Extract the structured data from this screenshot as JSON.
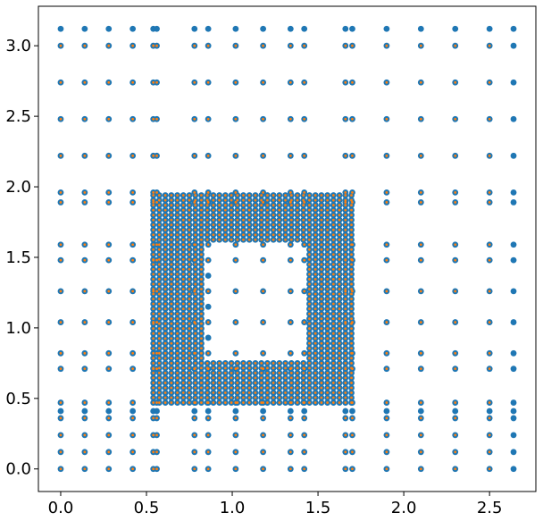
{
  "chart_data": {
    "type": "scatter",
    "title": "",
    "xlabel": "",
    "ylabel": "",
    "xlim": [
      -0.13,
      2.77
    ],
    "ylim": [
      -0.16,
      3.28
    ],
    "grid": false,
    "x_ticks": [
      0.0,
      0.5,
      1.0,
      1.5,
      2.0,
      2.5
    ],
    "x_tick_labels": [
      "0.0",
      "0.5",
      "1.0",
      "1.5",
      "2.0",
      "2.5"
    ],
    "y_ticks": [
      0.0,
      0.5,
      1.0,
      1.5,
      2.0,
      2.5,
      3.0
    ],
    "y_tick_labels": [
      "0.0",
      "0.5",
      "1.0",
      "1.5",
      "2.0",
      "2.5",
      "3.0"
    ],
    "series": [
      {
        "color": "#1f77b4",
        "marker": "filled-circle",
        "grid_x": [
          0.0,
          0.14,
          0.28,
          0.42,
          0.54,
          0.56,
          0.78,
          0.86,
          1.02,
          1.18,
          1.34,
          1.42,
          1.66,
          1.7,
          1.9,
          2.1,
          2.3,
          2.5,
          2.64
        ],
        "grid_y": [
          0.0,
          0.12,
          0.24,
          0.36,
          0.41,
          0.47,
          0.71,
          0.82,
          1.04,
          1.26,
          1.48,
          1.59,
          1.89,
          1.96,
          2.22,
          2.48,
          2.74,
          3.0,
          3.12
        ],
        "dense_block": {
          "x_from": 0.54,
          "x_to": 1.7,
          "x_step": 0.035,
          "y_from": 0.47,
          "y_to": 1.96,
          "y_step": 0.035
        },
        "hole": {
          "x_from": 0.84,
          "x_to": 1.44,
          "y_from": 0.78,
          "y_to": 1.6
        },
        "hole_points": [
          [
            1.02,
            1.26
          ],
          [
            1.18,
            1.26
          ],
          [
            1.02,
            1.04
          ],
          [
            0.86,
            1.37
          ],
          [
            0.86,
            1.15
          ],
          [
            0.86,
            0.93
          ]
        ]
      },
      {
        "color": "#ff7f0e",
        "marker": "small-dot",
        "grid_x": [
          0.0,
          0.14,
          0.28,
          0.42,
          0.54,
          0.56,
          0.78,
          0.86,
          1.02,
          1.18,
          1.34,
          1.42,
          1.66,
          1.7,
          1.9,
          2.1,
          2.3,
          2.5
        ],
        "grid_y": [
          0.0,
          0.12,
          0.24,
          0.36,
          0.47,
          0.71,
          0.82,
          1.04,
          1.26,
          1.48,
          1.59,
          1.89,
          1.96,
          2.22,
          2.48,
          2.74,
          3.0
        ],
        "dense_block": {
          "x_from": 0.54,
          "x_to": 1.7,
          "x_step": 0.035,
          "y_from": 0.47,
          "y_to": 1.96,
          "y_step": 0.035
        },
        "hole": {
          "x_from": 0.84,
          "x_to": 1.44,
          "y_from": 0.78,
          "y_to": 1.6
        }
      }
    ]
  }
}
